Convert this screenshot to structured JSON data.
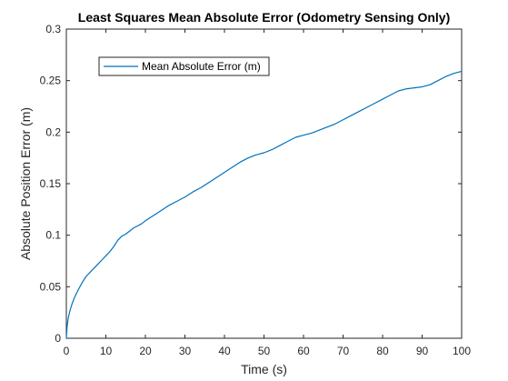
{
  "chart_data": {
    "type": "line",
    "title": "Least Squares Mean Absolute Error (Odometry Sensing Only)",
    "xlabel": "Time (s)",
    "ylabel": "Absolute Position Error (m)",
    "xlim": [
      0,
      100
    ],
    "ylim": [
      0,
      0.3
    ],
    "xticks": [
      "0",
      "10",
      "20",
      "30",
      "40",
      "50",
      "60",
      "70",
      "80",
      "90",
      "100"
    ],
    "yticks": [
      "0",
      "0.05",
      "0.1",
      "0.15",
      "0.2",
      "0.25",
      "0.3"
    ],
    "grid": false,
    "legend_position": "top-left",
    "series": [
      {
        "name": "Mean Absolute Error (m)",
        "color": "#0072BD",
        "x": [
          0,
          0.2,
          0.5,
          1,
          1.5,
          2,
          3,
          4,
          5,
          6,
          7,
          8,
          9,
          10,
          11,
          12,
          13,
          14,
          15,
          16,
          17,
          18,
          19,
          20,
          22,
          24,
          26,
          28,
          30,
          32,
          34,
          36,
          38,
          40,
          42,
          44,
          46,
          48,
          50,
          52,
          54,
          56,
          58,
          60,
          62,
          64,
          66,
          68,
          70,
          72,
          74,
          76,
          78,
          80,
          82,
          84,
          86,
          88,
          90,
          92,
          94,
          96,
          98,
          100
        ],
        "values": [
          0,
          0.012,
          0.02,
          0.028,
          0.034,
          0.039,
          0.047,
          0.054,
          0.06,
          0.064,
          0.068,
          0.072,
          0.076,
          0.08,
          0.084,
          0.089,
          0.095,
          0.099,
          0.101,
          0.104,
          0.107,
          0.109,
          0.111,
          0.114,
          0.119,
          0.124,
          0.129,
          0.133,
          0.137,
          0.142,
          0.146,
          0.151,
          0.156,
          0.161,
          0.166,
          0.171,
          0.175,
          0.178,
          0.18,
          0.183,
          0.187,
          0.191,
          0.195,
          0.197,
          0.199,
          0.202,
          0.205,
          0.208,
          0.212,
          0.216,
          0.22,
          0.224,
          0.228,
          0.232,
          0.236,
          0.24,
          0.242,
          0.243,
          0.244,
          0.246,
          0.25,
          0.254,
          0.257,
          0.259
        ]
      }
    ]
  }
}
